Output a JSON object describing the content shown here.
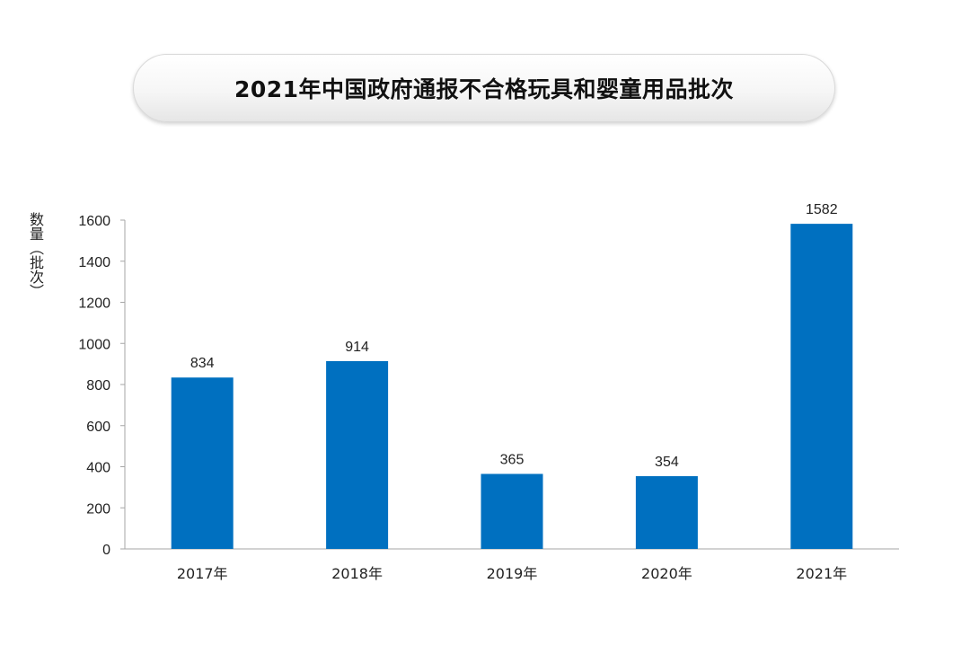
{
  "chart_data": {
    "type": "bar",
    "title": "2021年中国政府通报不合格玩具和婴童用品批次",
    "xlabel": "",
    "ylabel": "数量（批次）",
    "categories": [
      "2017年",
      "2018年",
      "2019年",
      "2020年",
      "2021年"
    ],
    "values": [
      834,
      914,
      365,
      354,
      1582
    ],
    "ylim": [
      0,
      1600
    ],
    "yticks": [
      0,
      200,
      400,
      600,
      800,
      1000,
      1200,
      1400,
      1600
    ],
    "data_labels": true,
    "grid": false,
    "legend": "none",
    "bar_color": "#0070c0"
  }
}
